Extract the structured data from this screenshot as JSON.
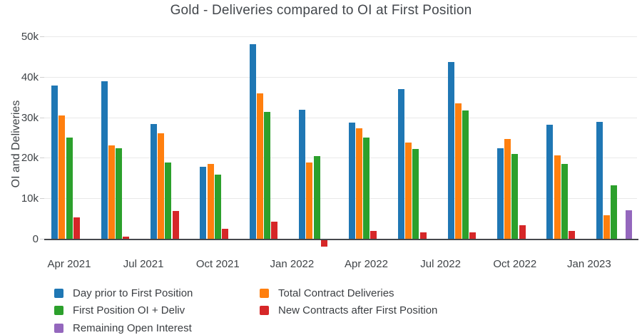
{
  "chart_data": {
    "type": "bar",
    "title": "Gold - Deliveries compared to OI at First Position",
    "ylabel": "OI and Deliveries",
    "xlabel": "",
    "grid": true,
    "legend_position": "bottom-left",
    "ylim": [
      0,
      50000
    ],
    "y_ticks": [
      "0",
      "10k",
      "20k",
      "30k",
      "40k",
      "50k"
    ],
    "x_tick_labels": [
      "Apr 2021",
      "Jul 2021",
      "Oct 2021",
      "Jan 2022",
      "Apr 2022",
      "Jul 2022",
      "Oct 2022",
      "Jan 2023"
    ],
    "x_tick_months": [
      0,
      3,
      6,
      9,
      12,
      15,
      18,
      21
    ],
    "categories": [
      "Apr 2021",
      "Jun 2021",
      "Aug 2021",
      "Oct 2021",
      "Dec 2021",
      "Feb 2022",
      "Apr 2022",
      "Jun 2022",
      "Aug 2022",
      "Oct 2022",
      "Dec 2022",
      "Feb 2023"
    ],
    "group_months": [
      0,
      2,
      4,
      6,
      8,
      10,
      12,
      14,
      16,
      18,
      20,
      22
    ],
    "series": [
      {
        "name": "Day prior to First Position",
        "color": "#1f77b4",
        "values": [
          38100,
          39100,
          28500,
          18000,
          48300,
          32000,
          28800,
          37200,
          43800,
          22500,
          28400,
          29100
        ]
      },
      {
        "name": "Total Contract Deliveries",
        "color": "#ff7f0e",
        "values": [
          30600,
          23300,
          26300,
          18700,
          36100,
          19000,
          27400,
          24000,
          33700,
          24900,
          20700,
          6000
        ]
      },
      {
        "name": "First Position OI + Deliv",
        "color": "#2ca02c",
        "values": [
          25200,
          22500,
          19000,
          16000,
          31500,
          20600,
          25200,
          22300,
          31900,
          21200,
          18600,
          13400
        ]
      },
      {
        "name": "New Contracts after First Position",
        "color": "#d62728",
        "values": [
          5400,
          800,
          7100,
          2600,
          4400,
          -1800,
          2200,
          1800,
          1800,
          3500,
          2100,
          0
        ]
      },
      {
        "name": "Remaining Open Interest",
        "color": "#9467bd",
        "values": [
          0,
          0,
          0,
          0,
          0,
          0,
          0,
          0,
          0,
          0,
          0,
          7300
        ]
      }
    ],
    "legend_columns": [
      [
        0,
        2,
        4
      ],
      [
        1,
        3
      ]
    ]
  }
}
